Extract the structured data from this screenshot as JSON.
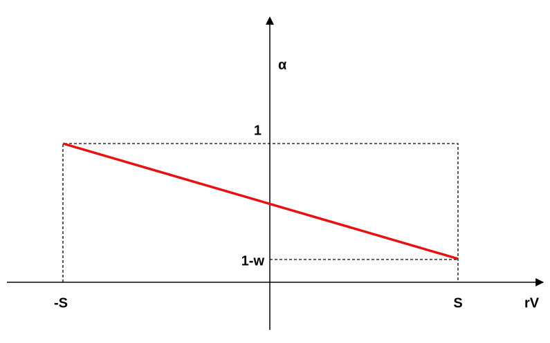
{
  "axes": {
    "x_label": "rV",
    "y_label": "α"
  },
  "x_ticks": [
    "-S",
    "S"
  ],
  "y_ticks": [
    "1",
    "1-w"
  ]
}
